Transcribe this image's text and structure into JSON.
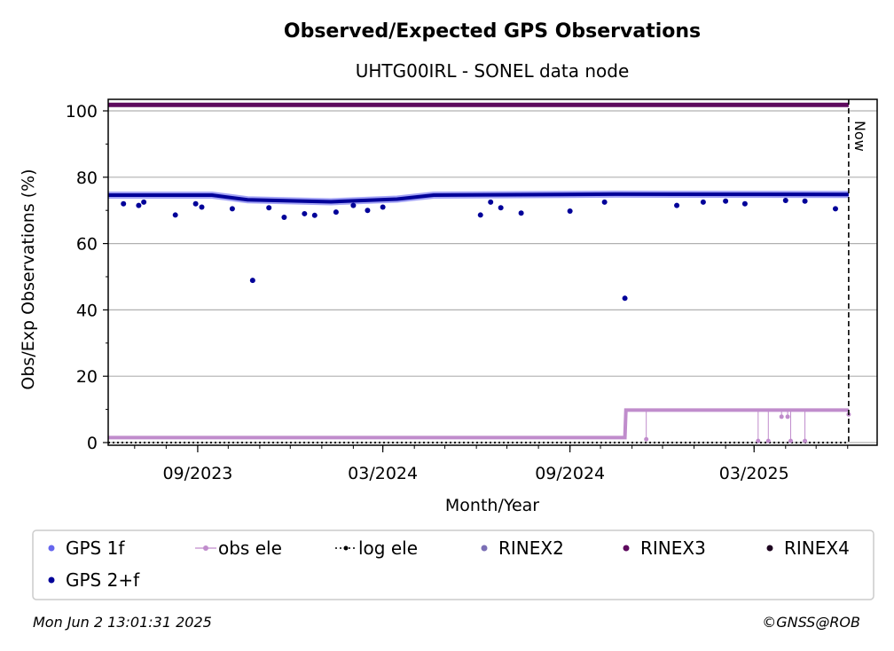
{
  "chart_data": {
    "type": "scatter",
    "title": "Observed/Expected GPS Observations",
    "subtitle": "UHTG00IRL - SONEL data node",
    "xlabel": "Month/Year",
    "ylabel": "Obs/Exp Observations (%)",
    "ylim": [
      0,
      100
    ],
    "yticks": [
      0,
      20,
      40,
      60,
      80,
      100
    ],
    "xticks": [
      "09/2023",
      "03/2024",
      "09/2024",
      "03/2025"
    ],
    "x_range": [
      "2023-06-05",
      "2025-06-30"
    ],
    "now_marker": {
      "date": "2025-06-02",
      "label": "Now"
    },
    "grid": true,
    "legend_position": "below",
    "legend": [
      "GPS 1f",
      "obs ele",
      "log ele",
      "RINEX2",
      "RINEX3",
      "RINEX4",
      "GPS 2+f"
    ],
    "colors": {
      "gps1f": "#6666ee",
      "gps2f": "#000099",
      "obs_ele": "#c08ccc",
      "log_ele": "#000000",
      "rinex2": "#7b6fb5",
      "rinex3": "#5e0a5e",
      "rinex4": "#1e0520"
    },
    "series": [
      {
        "name": "GPS 2+f",
        "baseline": [
          [
            "2023-06-05",
            74.6
          ],
          [
            "2023-09-15",
            74.6
          ],
          [
            "2023-10-20",
            73.2
          ],
          [
            "2024-01-10",
            72.6
          ],
          [
            "2024-03-15",
            73.4
          ],
          [
            "2024-04-20",
            74.6
          ],
          [
            "2024-10-15",
            74.9
          ],
          [
            "2025-06-02",
            74.8
          ]
        ],
        "outliers": [
          [
            "2023-06-20",
            72.0
          ],
          [
            "2023-07-05",
            71.5
          ],
          [
            "2023-07-10",
            72.5
          ],
          [
            "2023-08-10",
            68.6
          ],
          [
            "2023-08-30",
            72.0
          ],
          [
            "2023-09-05",
            71.0
          ],
          [
            "2023-10-05",
            70.5
          ],
          [
            "2023-10-25",
            48.9
          ],
          [
            "2023-11-10",
            70.8
          ],
          [
            "2023-11-25",
            67.9
          ],
          [
            "2023-12-15",
            69.0
          ],
          [
            "2023-12-25",
            68.5
          ],
          [
            "2024-01-15",
            69.5
          ],
          [
            "2024-02-01",
            71.5
          ],
          [
            "2024-02-15",
            70.0
          ],
          [
            "2024-03-01",
            71.0
          ],
          [
            "2024-06-05",
            68.6
          ],
          [
            "2024-06-15",
            72.5
          ],
          [
            "2024-06-25",
            70.8
          ],
          [
            "2024-07-15",
            69.2
          ],
          [
            "2024-09-01",
            69.8
          ],
          [
            "2024-10-05",
            72.5
          ],
          [
            "2024-10-25",
            43.5
          ],
          [
            "2024-12-15",
            71.5
          ],
          [
            "2025-01-10",
            72.5
          ],
          [
            "2025-02-01",
            72.8
          ],
          [
            "2025-02-20",
            72.0
          ],
          [
            "2025-04-01",
            73.0
          ],
          [
            "2025-04-20",
            72.8
          ],
          [
            "2025-05-20",
            70.5
          ]
        ]
      },
      {
        "name": "obs ele",
        "baseline": [
          [
            "2023-06-05",
            1.5
          ],
          [
            "2024-10-25",
            1.5
          ],
          [
            "2024-10-26",
            9.8
          ],
          [
            "2025-06-02",
            9.8
          ]
        ],
        "outliers": [
          [
            "2024-11-15",
            1.0
          ],
          [
            "2025-03-05",
            0.5
          ],
          [
            "2025-03-15",
            0.5
          ],
          [
            "2025-03-28",
            7.8
          ],
          [
            "2025-04-03",
            7.8
          ],
          [
            "2025-04-06",
            0.5
          ],
          [
            "2025-04-20",
            0.5
          ],
          [
            "2025-06-02",
            8.5
          ]
        ]
      },
      {
        "name": "log ele",
        "value": 0
      },
      {
        "name": "RINEX3",
        "value": 101.8
      }
    ]
  },
  "footer": {
    "timestamp": "Mon Jun  2 13:01:31 2025",
    "credit": "©GNSS@ROB"
  }
}
